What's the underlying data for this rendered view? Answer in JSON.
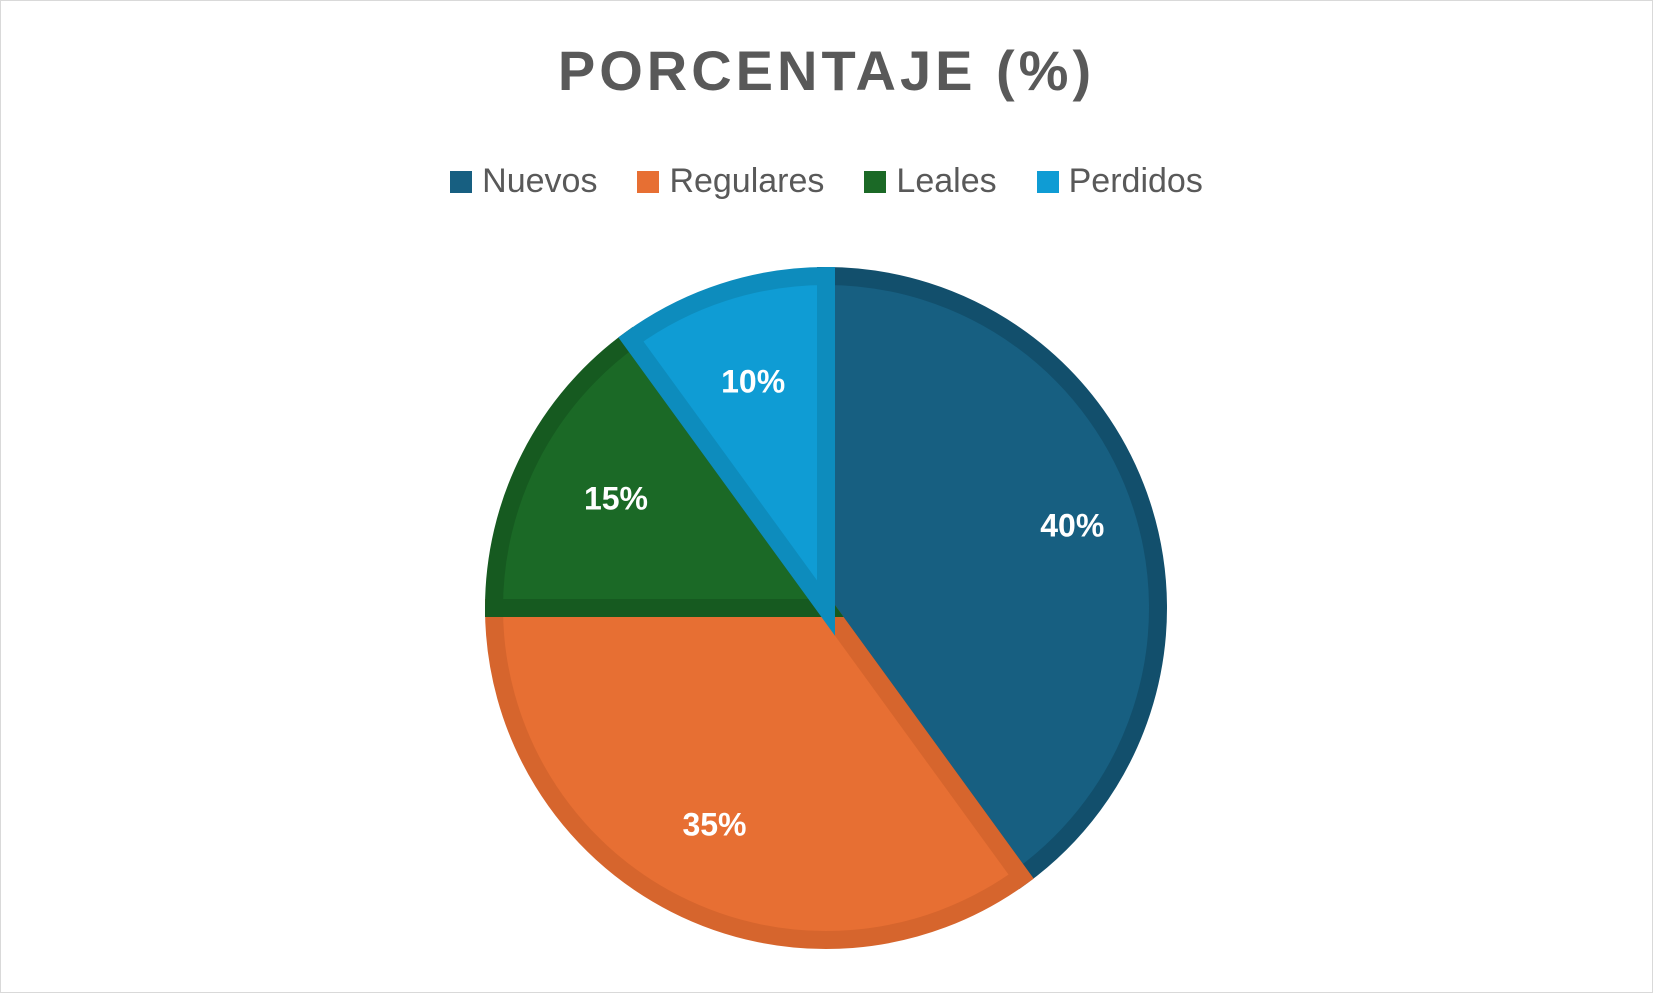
{
  "chart_data": {
    "type": "pie",
    "title": "PORCENTAJE (%)",
    "categories": [
      "Nuevos",
      "Regulares",
      "Leales",
      "Perdidos"
    ],
    "values": [
      40,
      35,
      15,
      10
    ],
    "data_labels": [
      "40%",
      "35%",
      "15%",
      "10%"
    ],
    "colors": [
      "#175f81",
      "#e76f33",
      "#1b6926",
      "#0f9cd4"
    ],
    "border_colors": [
      "#124f6c",
      "#d6652d",
      "#165a20",
      "#0d8cbd"
    ],
    "legend_position": "top",
    "start_angle": "12 o'clock, clockwise"
  },
  "legend": [
    {
      "label": "Nuevos",
      "color": "#175f81"
    },
    {
      "label": "Regulares",
      "color": "#e76f33"
    },
    {
      "label": "Leales",
      "color": "#1b6926"
    },
    {
      "label": "Perdidos",
      "color": "#0f9cd4"
    }
  ]
}
